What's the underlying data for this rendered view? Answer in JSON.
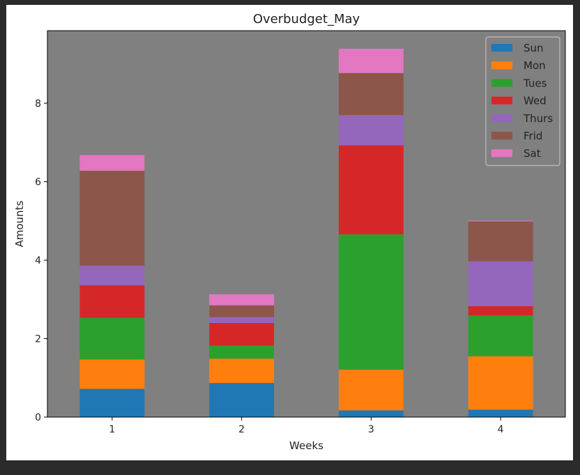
{
  "chart_data": {
    "type": "bar",
    "stacked": true,
    "title": "Overbudget_May",
    "xlabel": "Weeks",
    "ylabel": "Amounts",
    "categories": [
      "1",
      "2",
      "3",
      "4"
    ],
    "ylim": [
      0,
      9.85
    ],
    "yticks": [
      0,
      2,
      4,
      6,
      8
    ],
    "grid": false,
    "background_color": "#808080",
    "legend_position": "top-right",
    "series": [
      {
        "name": "Sun",
        "color": "#1f77b4",
        "values": [
          0.72,
          0.87,
          0.17,
          0.19
        ]
      },
      {
        "name": "Mon",
        "color": "#ff7f0e",
        "values": [
          0.75,
          0.62,
          1.04,
          1.36
        ]
      },
      {
        "name": "Tues",
        "color": "#2ca02c",
        "values": [
          1.06,
          0.33,
          3.45,
          1.04
        ]
      },
      {
        "name": "Wed",
        "color": "#d62728",
        "values": [
          0.83,
          0.58,
          2.27,
          0.24
        ]
      },
      {
        "name": "Thurs",
        "color": "#9467bd",
        "values": [
          0.5,
          0.15,
          0.77,
          1.14
        ]
      },
      {
        "name": "Frid",
        "color": "#8c564b",
        "values": [
          2.42,
          0.3,
          1.07,
          1.02
        ]
      },
      {
        "name": "Sat",
        "color": "#e377c2",
        "values": [
          0.4,
          0.28,
          0.62,
          0.02
        ]
      }
    ]
  }
}
